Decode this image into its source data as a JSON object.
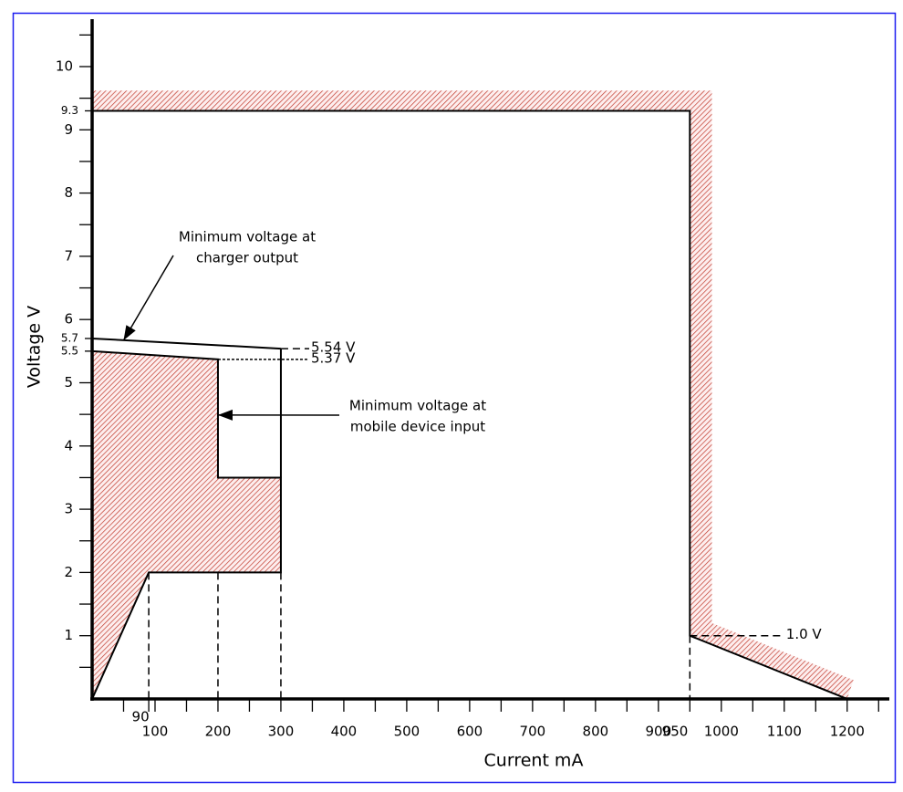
{
  "chart_data": {
    "type": "line",
    "xlabel": "Current mA",
    "ylabel": "Voltage V",
    "xlim": [
      0,
      1267
    ],
    "ylim": [
      0,
      10.75
    ],
    "xticks": [
      90,
      100,
      200,
      300,
      400,
      500,
      600,
      700,
      800,
      900,
      950,
      1000,
      1100,
      1200
    ],
    "yticks": [
      1,
      2,
      3,
      4,
      5,
      5.5,
      5.7,
      6,
      7,
      8,
      9,
      9.3,
      10
    ],
    "xticks_minor": [
      50,
      150,
      250,
      350,
      450,
      550,
      650,
      750,
      850,
      1050,
      1150,
      1250
    ],
    "yticks_minor": [
      0.5,
      1.5,
      2.5,
      3.5,
      4.5,
      6.5,
      7.5,
      8.5,
      9.5,
      10.5
    ],
    "hatch_color": "#c0392b",
    "series": [
      {
        "x": [
          0,
          985,
          985,
          1210,
          1200,
          950,
          950,
          0
        ],
        "values": [
          9.62,
          9.62,
          1.2,
          0.3,
          0,
          1,
          9.3,
          9.3
        ],
        "fill": "hatch",
        "line": "none",
        "color": "#000000"
      },
      {
        "x": [
          0,
          0,
          200,
          200,
          300,
          300,
          90,
          0
        ],
        "values": [
          0,
          5.5,
          5.37,
          3.5,
          3.5,
          2,
          2,
          0
        ],
        "fill": "hatch",
        "line": "solid",
        "color": "#000000"
      },
      {
        "x": [
          0,
          300
        ],
        "values": [
          5.7,
          5.54
        ],
        "line": "solid",
        "color": "#000000"
      },
      {
        "x": [
          300,
          300
        ],
        "values": [
          5.54,
          3.5
        ],
        "line": "solid",
        "color": "#000000"
      },
      {
        "x": [
          0,
          950,
          950,
          1200
        ],
        "values": [
          9.3,
          9.3,
          1,
          0
        ],
        "line": "solid",
        "color": "#000000"
      },
      {
        "x": [
          90,
          90
        ],
        "values": [
          2,
          0
        ],
        "line": "dashed",
        "color": "#000000"
      },
      {
        "x": [
          200,
          200
        ],
        "values": [
          2,
          0
        ],
        "line": "dashed",
        "color": "#000000"
      },
      {
        "x": [
          300,
          300
        ],
        "values": [
          2,
          0
        ],
        "line": "dashed",
        "color": "#000000"
      },
      {
        "x": [
          950,
          950
        ],
        "values": [
          1,
          0
        ],
        "line": "dashed",
        "color": "#000000"
      },
      {
        "x": [
          300,
          345
        ],
        "values": [
          5.54,
          5.54
        ],
        "line": "dashed",
        "color": "#000000",
        "label": "5.54 V"
      },
      {
        "x": [
          200,
          345
        ],
        "values": [
          5.37,
          5.37
        ],
        "line": "dotted",
        "color": "#000000",
        "label": "5.37 V"
      },
      {
        "x": [
          950,
          1100
        ],
        "values": [
          1,
          1
        ],
        "line": "dashed",
        "color": "#000000",
        "label": "1.0 V"
      }
    ],
    "annotations": [
      {
        "text": [
          "Minimum voltage at",
          "charger output"
        ],
        "xy": [
          50,
          5.67
        ]
      },
      {
        "text": [
          "Minimum voltage at",
          "mobile device input"
        ],
        "xy": [
          200,
          4.49
        ]
      }
    ]
  }
}
